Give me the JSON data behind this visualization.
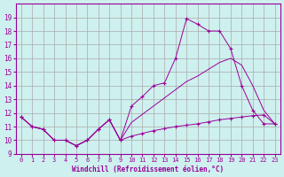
{
  "xlabel": "Windchill (Refroidissement éolien,°C)",
  "background_color": "#cef0ee",
  "line_color": "#990099",
  "grid_color": "#aaaaaa",
  "ylim": [
    9,
    20
  ],
  "xlim": [
    -0.5,
    23.5
  ],
  "yticks": [
    9,
    10,
    11,
    12,
    13,
    14,
    15,
    16,
    17,
    18,
    19
  ],
  "xticks": [
    0,
    1,
    2,
    3,
    4,
    5,
    6,
    7,
    8,
    9,
    10,
    11,
    12,
    13,
    14,
    15,
    16,
    17,
    18,
    19,
    20,
    21,
    22,
    23
  ],
  "line1_x": [
    0,
    1,
    2,
    3,
    4,
    5,
    6,
    7,
    8,
    9,
    10,
    11,
    12,
    13,
    14,
    15,
    16,
    17,
    18,
    19,
    20,
    21,
    22,
    23
  ],
  "line1_y": [
    11.7,
    11.0,
    10.8,
    10.0,
    10.0,
    9.6,
    10.0,
    10.8,
    11.5,
    10.0,
    10.3,
    10.5,
    10.7,
    10.85,
    11.0,
    11.1,
    11.2,
    11.35,
    11.5,
    11.6,
    11.7,
    11.8,
    11.85,
    11.2
  ],
  "line2_x": [
    0,
    1,
    2,
    3,
    4,
    5,
    6,
    7,
    8,
    9,
    10,
    11,
    12,
    13,
    14,
    15,
    16,
    17,
    18,
    19,
    20,
    21,
    22,
    23
  ],
  "line2_y": [
    11.7,
    11.0,
    10.8,
    10.0,
    10.0,
    9.6,
    10.0,
    10.8,
    11.5,
    10.0,
    11.3,
    11.9,
    12.5,
    13.1,
    13.7,
    14.3,
    14.7,
    15.2,
    15.7,
    16.0,
    15.5,
    14.0,
    12.2,
    11.2
  ],
  "line3_x": [
    0,
    1,
    2,
    3,
    4,
    5,
    6,
    7,
    8,
    9,
    10,
    11,
    12,
    13,
    14,
    15,
    16,
    17,
    18,
    19,
    20,
    21,
    22,
    23
  ],
  "line3_y": [
    11.7,
    11.0,
    10.8,
    10.0,
    10.0,
    9.6,
    10.0,
    10.8,
    11.5,
    10.0,
    12.5,
    13.2,
    14.0,
    14.2,
    16.0,
    18.9,
    18.5,
    18.0,
    18.0,
    16.7,
    14.0,
    12.2,
    11.2,
    11.2
  ]
}
